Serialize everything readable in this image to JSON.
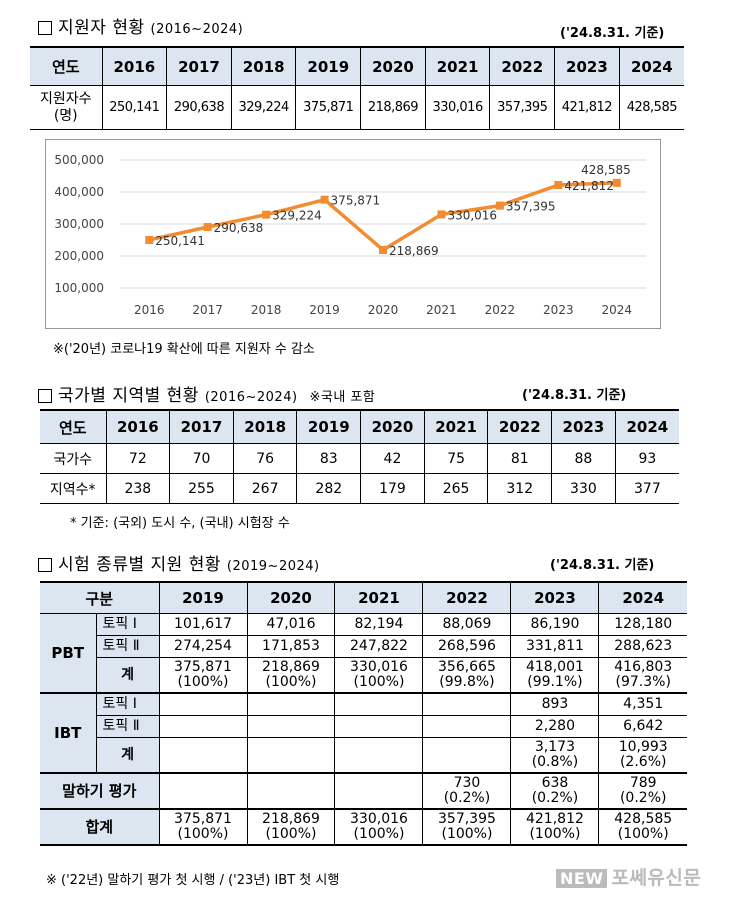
{
  "section1": {
    "title": "지원자 현황",
    "period": "(2016~2024)",
    "base_date": "('24.8.31. 기준)",
    "header_label": "연도",
    "row_label_line1": "지원자수",
    "row_label_line2": "(명)",
    "years": [
      "2016",
      "2017",
      "2018",
      "2019",
      "2020",
      "2021",
      "2022",
      "2023",
      "2024"
    ],
    "values": [
      "250,141",
      "290,638",
      "329,224",
      "375,871",
      "218,869",
      "330,016",
      "357,395",
      "421,812",
      "428,585"
    ],
    "note": "※('20년) 코로나19 확산에 따른 지원자 수 감소"
  },
  "chart_data": {
    "type": "line",
    "title": "",
    "xlabel": "",
    "ylabel": "",
    "x": [
      "2016",
      "2017",
      "2018",
      "2019",
      "2020",
      "2021",
      "2022",
      "2023",
      "2024"
    ],
    "y": [
      250141,
      290638,
      329224,
      375871,
      218869,
      330016,
      357395,
      421812,
      428585
    ],
    "data_labels": [
      "250,141",
      "290,638",
      "329,224",
      "375,871",
      "218,869",
      "330,016",
      "357,395",
      "421,812",
      "428,585"
    ],
    "ylim": [
      100000,
      500000
    ],
    "y_ticks": [
      100000,
      200000,
      300000,
      400000,
      500000
    ],
    "y_tick_labels": [
      "100,000",
      "200,000",
      "300,000",
      "400,000",
      "500,000"
    ],
    "grid": true,
    "line_color": "#f28c30",
    "marker": "square"
  },
  "section2": {
    "title": "국가별 지역별 현황",
    "period": "(2016~2024)",
    "domestic_note": "※국내 포함",
    "base_date": "('24.8.31. 기준)",
    "header_label": "연도",
    "years": [
      "2016",
      "2017",
      "2018",
      "2019",
      "2020",
      "2021",
      "2022",
      "2023",
      "2024"
    ],
    "rows": [
      {
        "label": "국가수",
        "values": [
          "72",
          "70",
          "76",
          "83",
          "42",
          "75",
          "81",
          "88",
          "93"
        ]
      },
      {
        "label": "지역수*",
        "values": [
          "238",
          "255",
          "267",
          "282",
          "179",
          "265",
          "312",
          "330",
          "377"
        ]
      }
    ],
    "note": "* 기준: (국외) 도시 수, (국내) 시험장 수"
  },
  "section3": {
    "title": "시험 종류별 지원 현황",
    "period": "(2019~2024)",
    "base_date": "('24.8.31. 기준)",
    "header_label": "구분",
    "years": [
      "2019",
      "2020",
      "2021",
      "2022",
      "2023",
      "2024"
    ],
    "pbt_label": "PBT",
    "ibt_label": "IBT",
    "speaking_label": "말하기 평가",
    "total_label": "합계",
    "topik1_label": "토픽 Ⅰ",
    "topik2_label": "토픽 Ⅱ",
    "sum_label": "계",
    "pbt_topik1": [
      "101,617",
      "47,016",
      "82,194",
      "88,069",
      "86,190",
      "128,180"
    ],
    "pbt_topik2": [
      "274,254",
      "171,853",
      "247,822",
      "268,596",
      "331,811",
      "288,623"
    ],
    "pbt_sum": [
      "375,871",
      "218,869",
      "330,016",
      "356,665",
      "418,001",
      "416,803"
    ],
    "pbt_sum_pct": [
      "(100%)",
      "(100%)",
      "(100%)",
      "(99.8%)",
      "(99.1%)",
      "(97.3%)"
    ],
    "ibt_topik1": [
      "",
      "",
      "",
      "",
      "893",
      "4,351"
    ],
    "ibt_topik2": [
      "",
      "",
      "",
      "",
      "2,280",
      "6,642"
    ],
    "ibt_sum": [
      "",
      "",
      "",
      "",
      "3,173",
      "10,993"
    ],
    "ibt_sum_pct": [
      "",
      "",
      "",
      "",
      "(0.8%)",
      "(2.6%)"
    ],
    "speaking": [
      "",
      "",
      "",
      "730",
      "638",
      "789"
    ],
    "speaking_pct": [
      "",
      "",
      "",
      "(0.2%)",
      "(0.2%)",
      "(0.2%)"
    ],
    "total": [
      "375,871",
      "218,869",
      "330,016",
      "357,395",
      "421,812",
      "428,585"
    ],
    "total_pct": [
      "(100%)",
      "(100%)",
      "(100%)",
      "(100%)",
      "(100%)",
      "(100%)"
    ],
    "note": "※ ('22년) 말하기 평가 첫 시행 / ('23년) IBT 첫 시행"
  },
  "watermark": {
    "logo": "NEW",
    "text": "포쎄유신문"
  }
}
